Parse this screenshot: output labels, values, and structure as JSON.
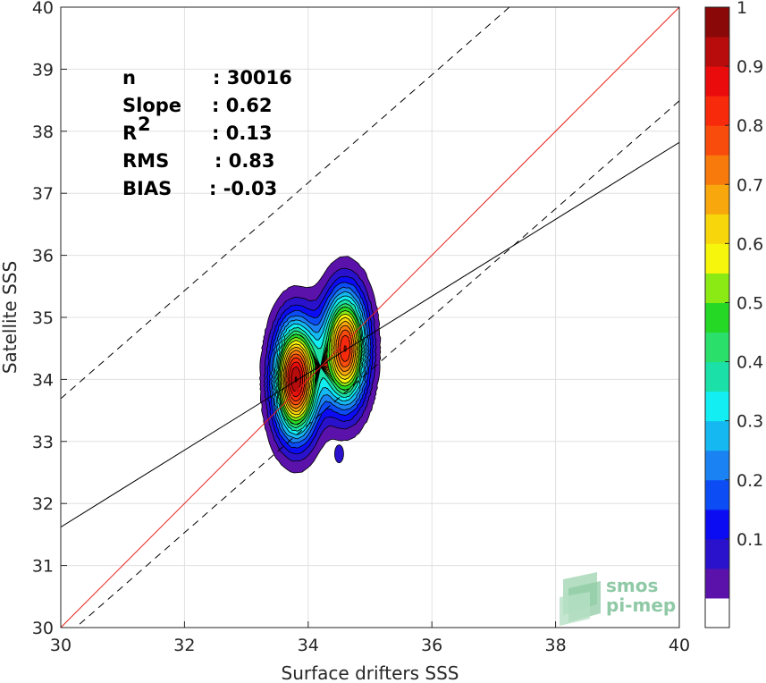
{
  "chart_data": {
    "type": "heatmap",
    "title": "",
    "xlabel": "Surface drifters SSS",
    "ylabel": "Satellite SSS",
    "xlim": [
      30,
      40
    ],
    "ylim": [
      30,
      40
    ],
    "x_ticks": [
      "30",
      "32",
      "34",
      "36",
      "38",
      "40"
    ],
    "y_ticks": [
      "30",
      "31",
      "32",
      "33",
      "34",
      "35",
      "36",
      "37",
      "38",
      "39",
      "40"
    ],
    "grid": true,
    "stats": [
      {
        "label": "n",
        "value": ": 30016"
      },
      {
        "label": "Slope",
        "value": ": 0.62"
      },
      {
        "label": "R",
        "sup": "2",
        "value": ": 0.13"
      },
      {
        "label": "RMS",
        "value": ": 0.83"
      },
      {
        "label": "BIAS",
        "value": ": -0.03"
      }
    ],
    "lines": {
      "identity": {
        "slope": 1,
        "intercept": 0,
        "color": "#e8211b",
        "style": "solid"
      },
      "regression": {
        "slope": 0.62,
        "intercept": 13.02,
        "style": "solid",
        "color": "#000000"
      },
      "upper_bound": {
        "slope": 0.87,
        "intercept": 7.59,
        "style": "dashed",
        "color": "#000000"
      },
      "lower_bound": {
        "slope": 0.87,
        "intercept": 3.69,
        "style": "dashed",
        "color": "#000000"
      }
    },
    "density_peaks": [
      {
        "x": 33.8,
        "y": 34.0,
        "value": 1.0
      },
      {
        "x": 34.6,
        "y": 34.5,
        "value": 0.9
      }
    ],
    "contour_levels": [
      0.05,
      0.1,
      0.15,
      0.2,
      0.25,
      0.3,
      0.35,
      0.4,
      0.45,
      0.5,
      0.55,
      0.6,
      0.65,
      0.7,
      0.75,
      0.8,
      0.85,
      0.9,
      0.95,
      1.0
    ],
    "colorbar": {
      "range": [
        0,
        1
      ],
      "tick_values": [
        0.1,
        0.2,
        0.3,
        0.4,
        0.5,
        0.6,
        0.7,
        0.8,
        0.9,
        1
      ],
      "tick_labels": [
        "0.1",
        "0.2",
        "0.3",
        "0.4",
        "0.5",
        "0.6",
        "0.7",
        "0.8",
        "0.9",
        "1"
      ],
      "colors": [
        "#ffffff",
        "#5a12aa",
        "#2a12cc",
        "#0c0cf2",
        "#0c4cf5",
        "#1a82f2",
        "#16b8f2",
        "#12eef2",
        "#1be0a8",
        "#2ae06a",
        "#26d826",
        "#8cea14",
        "#f6f60c",
        "#f8d60c",
        "#f8a80c",
        "#f87a0c",
        "#f84c0c",
        "#f82a0c",
        "#ea0c0c",
        "#b80c0c",
        "#8a0808"
      ]
    },
    "logo": {
      "line1": "smos",
      "line2": "pi-mep"
    }
  }
}
